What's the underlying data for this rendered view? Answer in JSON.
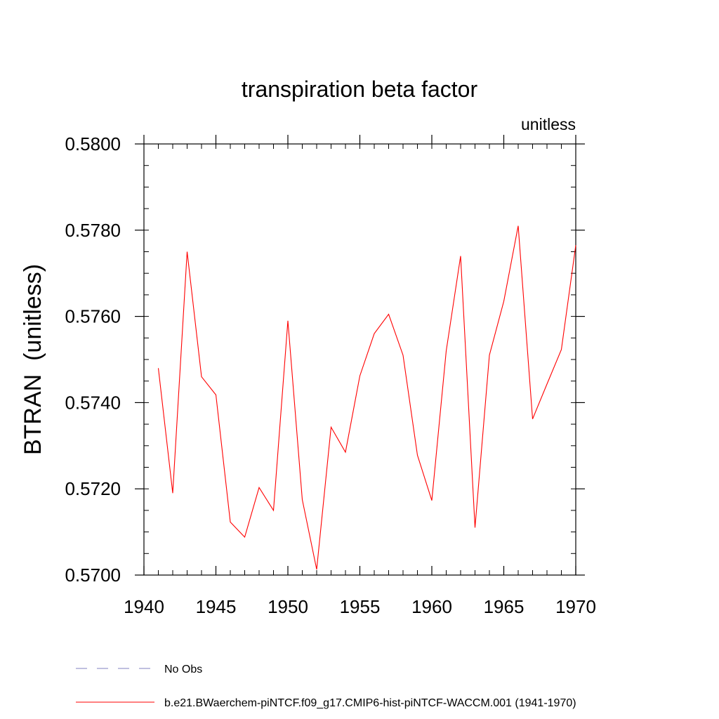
{
  "chart_data": {
    "type": "line",
    "title": "transpiration beta factor",
    "units_label": "unitless",
    "ylabel": "BTRAN  (unitless)",
    "xlabel": "",
    "xlim": [
      1940,
      1970
    ],
    "ylim": [
      0.57,
      0.58
    ],
    "x_ticks": [
      1940,
      1945,
      1950,
      1955,
      1960,
      1965,
      1970
    ],
    "x_tick_labels": [
      "1940",
      "1945",
      "1950",
      "1955",
      "1960",
      "1965",
      "1970"
    ],
    "x_minor_step": 1,
    "y_ticks": [
      0.57,
      0.572,
      0.574,
      0.576,
      0.578,
      0.58
    ],
    "y_tick_labels": [
      "0.5700",
      "0.5720",
      "0.5740",
      "0.5760",
      "0.5780",
      "0.5800"
    ],
    "y_minor_step": 0.0005,
    "grid": false,
    "legend_position": "bottom",
    "series": [
      {
        "name": "b.e21.BWaerchem-piNTCF.f09_g17.CMIP6-hist-piNTCF-WACCM.001 (1941-1970)",
        "color": "#ff0000",
        "style": "solid",
        "x": [
          1941,
          1942,
          1943,
          1944,
          1945,
          1946,
          1947,
          1948,
          1949,
          1950,
          1951,
          1952,
          1953,
          1954,
          1955,
          1956,
          1957,
          1958,
          1959,
          1960,
          1961,
          1962,
          1963,
          1964,
          1965,
          1966,
          1967,
          1968,
          1969,
          1970
        ],
        "y": [
          0.5748,
          0.5719,
          0.5775,
          0.5746,
          0.57418,
          0.57123,
          0.57088,
          0.57203,
          0.5715,
          0.5759,
          0.57175,
          0.57013,
          0.57343,
          0.57285,
          0.57462,
          0.5756,
          0.57605,
          0.5751,
          0.57278,
          0.57173,
          0.5752,
          0.5774,
          0.5711,
          0.5751,
          0.57635,
          0.5781,
          0.57362,
          0.57443,
          0.57523,
          0.57765
        ]
      }
    ],
    "legend": [
      {
        "label": "No Obs",
        "color": "#8080c0",
        "style": "dashed"
      },
      {
        "label": "b.e21.BWaerchem-piNTCF.f09_g17.CMIP6-hist-piNTCF-WACCM.001 (1941-1970)",
        "color": "#ff0000",
        "style": "solid"
      }
    ]
  }
}
